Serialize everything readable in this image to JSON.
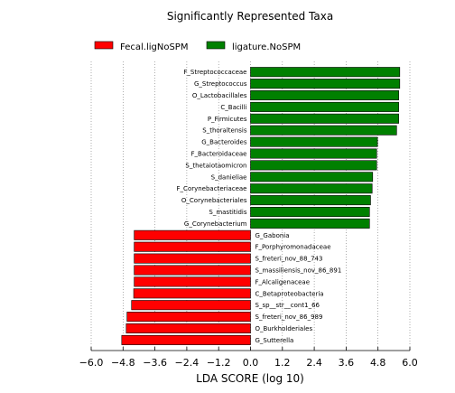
{
  "chart_data": {
    "type": "bar",
    "orientation": "horizontal",
    "title": "Significantly Represented Taxa",
    "xlabel": "LDA SCORE (log 10)",
    "ylabel": "",
    "xlim": [
      -6.0,
      6.0
    ],
    "xticks": [
      -6.0,
      -4.8,
      -3.6,
      -2.4,
      -1.2,
      0.0,
      1.2,
      2.4,
      3.6,
      4.8,
      6.0
    ],
    "xtick_labels": [
      "−6.0",
      "−4.8",
      "−3.6",
      "−2.4",
      "−1.2",
      "0.0",
      "1.2",
      "2.4",
      "3.6",
      "4.8",
      "6.0"
    ],
    "grid": "vertical dotted",
    "legend_position": "top",
    "series": [
      {
        "name": "Fecal.ligNoSPM",
        "color": "#ff0000"
      },
      {
        "name": "ligature.NoSPM",
        "color": "#008000"
      }
    ],
    "bars": [
      {
        "label": "F_Streptococcaceae",
        "value": 5.62,
        "group": "ligature.NoSPM"
      },
      {
        "label": "G_Streptococcus",
        "value": 5.62,
        "group": "ligature.NoSPM"
      },
      {
        "label": "O_Lactobacillales",
        "value": 5.58,
        "group": "ligature.NoSPM"
      },
      {
        "label": "C_Bacilli",
        "value": 5.58,
        "group": "ligature.NoSPM"
      },
      {
        "label": "P_Firmicutes",
        "value": 5.58,
        "group": "ligature.NoSPM"
      },
      {
        "label": "S_thoraltensis",
        "value": 5.5,
        "group": "ligature.NoSPM"
      },
      {
        "label": "G_Bacteroides",
        "value": 4.78,
        "group": "ligature.NoSPM"
      },
      {
        "label": "F_Bacteroidaceae",
        "value": 4.75,
        "group": "ligature.NoSPM"
      },
      {
        "label": "S_thetaiotaomicron",
        "value": 4.75,
        "group": "ligature.NoSPM"
      },
      {
        "label": "S_danieliae",
        "value": 4.6,
        "group": "ligature.NoSPM"
      },
      {
        "label": "F_Corynebacteriaceae",
        "value": 4.58,
        "group": "ligature.NoSPM"
      },
      {
        "label": "O_Corynebacteriales",
        "value": 4.52,
        "group": "ligature.NoSPM"
      },
      {
        "label": "S_mastitidis",
        "value": 4.48,
        "group": "ligature.NoSPM"
      },
      {
        "label": "G_Corynebacterium",
        "value": 4.48,
        "group": "ligature.NoSPM"
      },
      {
        "label": "G_Gabonia",
        "value": -4.38,
        "group": "Fecal.ligNoSPM"
      },
      {
        "label": "F_Porphyromonadaceae",
        "value": -4.38,
        "group": "Fecal.ligNoSPM"
      },
      {
        "label": "S_freteri_nov_88_743",
        "value": -4.38,
        "group": "Fecal.ligNoSPM"
      },
      {
        "label": "S_massiliensis_nov_86_891",
        "value": -4.38,
        "group": "Fecal.ligNoSPM"
      },
      {
        "label": "F_Alcaligenaceae",
        "value": -4.38,
        "group": "Fecal.ligNoSPM"
      },
      {
        "label": "C_Betaproteobacteria",
        "value": -4.4,
        "group": "Fecal.ligNoSPM"
      },
      {
        "label": "S_sp__str__cont1_66",
        "value": -4.48,
        "group": "Fecal.ligNoSPM"
      },
      {
        "label": "S_freteri_nov_86_989",
        "value": -4.65,
        "group": "Fecal.ligNoSPM"
      },
      {
        "label": "O_Burkholderiales",
        "value": -4.68,
        "group": "Fecal.ligNoSPM"
      },
      {
        "label": "G_Sutterella",
        "value": -4.85,
        "group": "Fecal.ligNoSPM"
      }
    ]
  }
}
